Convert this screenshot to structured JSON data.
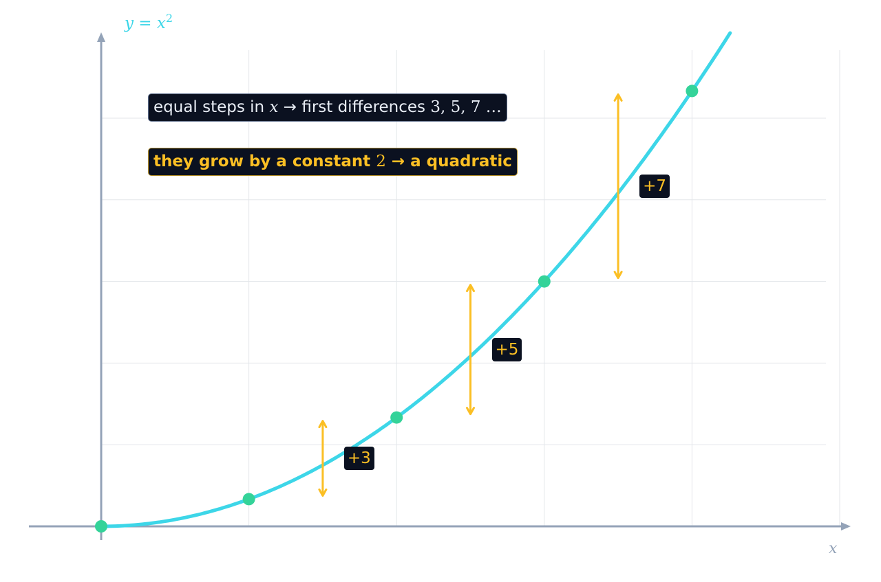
{
  "chart_data": {
    "type": "line",
    "function": "y = x^2",
    "title_parts": {
      "y": "y",
      "eq": " = ",
      "x": "x",
      "exp": "2"
    },
    "xlabel": "x",
    "xlim": [
      0,
      5
    ],
    "ylim": [
      0,
      17
    ],
    "grid": true,
    "curve": {
      "name": "y = x²",
      "color": "#3dd6e8"
    },
    "points": [
      {
        "x": 0,
        "y": 0
      },
      {
        "x": 1,
        "y": 1
      },
      {
        "x": 2,
        "y": 4
      },
      {
        "x": 3,
        "y": 9
      },
      {
        "x": 4,
        "y": 16
      }
    ],
    "point_color": "#34d399",
    "differences": [
      {
        "from": 1,
        "to": 4,
        "label": "+3"
      },
      {
        "from": 4,
        "to": 9,
        "label": "+5"
      },
      {
        "from": 9,
        "to": 16,
        "label": "+7"
      }
    ],
    "annotation_color": "#fbbf24",
    "annotations": {
      "line1": {
        "a": "equal steps in ",
        "b": "x",
        "c": "  →  first differences ",
        "d": "3, 5, 7 …"
      },
      "line2": {
        "a": "they grow by a constant ",
        "b": "2",
        "c": "  →  a quadratic"
      }
    }
  }
}
